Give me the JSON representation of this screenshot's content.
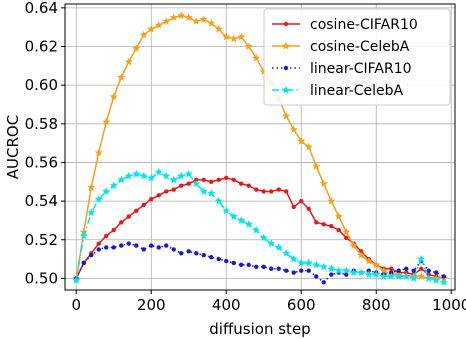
{
  "chart_data": {
    "type": "line",
    "xlabel": "diffusion step",
    "ylabel": "AUCROC",
    "xlim": [
      -30,
      1010
    ],
    "ylim": [
      0.494,
      0.642
    ],
    "xticks": [
      0,
      200,
      400,
      600,
      800,
      1000
    ],
    "xtick_labels": [
      "0",
      "200",
      "400",
      "600",
      "800",
      "1000"
    ],
    "yticks": [
      0.5,
      0.52,
      0.54,
      0.56,
      0.58,
      0.6,
      0.62,
      0.64
    ],
    "ytick_labels": [
      "0.50",
      "0.52",
      "0.54",
      "0.56",
      "0.58",
      "0.60",
      "0.62",
      "0.64"
    ],
    "grid": true,
    "legend_position": "top-right",
    "series": [
      {
        "name": "cosine-CIFAR10",
        "color": "#e41a1c",
        "linestyle": "solid",
        "marker": "dot",
        "points": [
          [
            0,
            0.5
          ],
          [
            20,
            0.508
          ],
          [
            40,
            0.513
          ],
          [
            60,
            0.518
          ],
          [
            80,
            0.522
          ],
          [
            100,
            0.525
          ],
          [
            120,
            0.529
          ],
          [
            140,
            0.532
          ],
          [
            160,
            0.535
          ],
          [
            180,
            0.538
          ],
          [
            200,
            0.541
          ],
          [
            220,
            0.543
          ],
          [
            240,
            0.545
          ],
          [
            260,
            0.546
          ],
          [
            280,
            0.548
          ],
          [
            300,
            0.549
          ],
          [
            320,
            0.551
          ],
          [
            340,
            0.551
          ],
          [
            360,
            0.55
          ],
          [
            380,
            0.551
          ],
          [
            400,
            0.552
          ],
          [
            420,
            0.551
          ],
          [
            440,
            0.549
          ],
          [
            460,
            0.548
          ],
          [
            480,
            0.546
          ],
          [
            500,
            0.545
          ],
          [
            520,
            0.545
          ],
          [
            540,
            0.546
          ],
          [
            560,
            0.545
          ],
          [
            580,
            0.537
          ],
          [
            600,
            0.54
          ],
          [
            620,
            0.536
          ],
          [
            640,
            0.529
          ],
          [
            660,
            0.528
          ],
          [
            680,
            0.527
          ],
          [
            700,
            0.525
          ],
          [
            720,
            0.521
          ],
          [
            740,
            0.518
          ],
          [
            760,
            0.514
          ],
          [
            780,
            0.51
          ],
          [
            800,
            0.507
          ],
          [
            820,
            0.505
          ],
          [
            840,
            0.505
          ],
          [
            860,
            0.503
          ],
          [
            880,
            0.503
          ],
          [
            900,
            0.502
          ],
          [
            920,
            0.505
          ],
          [
            940,
            0.502
          ],
          [
            960,
            0.501
          ],
          [
            980,
            0.5
          ]
        ]
      },
      {
        "name": "cosine-CelebA",
        "color": "#f4a21d",
        "linestyle": "solid",
        "marker": "star",
        "points": [
          [
            0,
            0.5
          ],
          [
            20,
            0.524
          ],
          [
            40,
            0.547
          ],
          [
            60,
            0.565
          ],
          [
            80,
            0.581
          ],
          [
            100,
            0.594
          ],
          [
            120,
            0.604
          ],
          [
            140,
            0.612
          ],
          [
            160,
            0.619
          ],
          [
            180,
            0.626
          ],
          [
            200,
            0.629
          ],
          [
            220,
            0.631
          ],
          [
            240,
            0.633
          ],
          [
            260,
            0.635
          ],
          [
            280,
            0.636
          ],
          [
            300,
            0.635
          ],
          [
            320,
            0.633
          ],
          [
            340,
            0.634
          ],
          [
            360,
            0.632
          ],
          [
            380,
            0.629
          ],
          [
            400,
            0.625
          ],
          [
            420,
            0.624
          ],
          [
            440,
            0.625
          ],
          [
            460,
            0.62
          ],
          [
            480,
            0.614
          ],
          [
            500,
            0.607
          ],
          [
            520,
            0.601
          ],
          [
            540,
            0.593
          ],
          [
            560,
            0.584
          ],
          [
            580,
            0.577
          ],
          [
            600,
            0.571
          ],
          [
            620,
            0.568
          ],
          [
            640,
            0.558
          ],
          [
            660,
            0.549
          ],
          [
            680,
            0.54
          ],
          [
            700,
            0.532
          ],
          [
            720,
            0.524
          ],
          [
            740,
            0.517
          ],
          [
            760,
            0.512
          ],
          [
            780,
            0.509
          ],
          [
            800,
            0.507
          ],
          [
            820,
            0.504
          ],
          [
            840,
            0.502
          ],
          [
            860,
            0.502
          ],
          [
            880,
            0.501
          ],
          [
            900,
            0.501
          ],
          [
            920,
            0.501
          ],
          [
            940,
            0.5
          ],
          [
            960,
            0.5
          ],
          [
            980,
            0.5
          ]
        ]
      },
      {
        "name": "linear-CIFAR10",
        "color": "#1a1acd",
        "linestyle": "dotted",
        "marker": "dot",
        "points": [
          [
            0,
            0.5
          ],
          [
            20,
            0.508
          ],
          [
            40,
            0.512
          ],
          [
            60,
            0.515
          ],
          [
            80,
            0.516
          ],
          [
            100,
            0.516
          ],
          [
            120,
            0.517
          ],
          [
            140,
            0.518
          ],
          [
            160,
            0.517
          ],
          [
            180,
            0.515
          ],
          [
            200,
            0.517
          ],
          [
            220,
            0.516
          ],
          [
            240,
            0.517
          ],
          [
            260,
            0.515
          ],
          [
            280,
            0.513
          ],
          [
            300,
            0.514
          ],
          [
            320,
            0.513
          ],
          [
            340,
            0.512
          ],
          [
            360,
            0.511
          ],
          [
            380,
            0.51
          ],
          [
            400,
            0.509
          ],
          [
            420,
            0.508
          ],
          [
            440,
            0.507
          ],
          [
            460,
            0.507
          ],
          [
            480,
            0.506
          ],
          [
            500,
            0.506
          ],
          [
            520,
            0.505
          ],
          [
            540,
            0.505
          ],
          [
            560,
            0.504
          ],
          [
            580,
            0.503
          ],
          [
            600,
            0.504
          ],
          [
            620,
            0.504
          ],
          [
            640,
            0.501
          ],
          [
            660,
            0.498
          ],
          [
            680,
            0.502
          ],
          [
            700,
            0.503
          ],
          [
            720,
            0.502
          ],
          [
            740,
            0.504
          ],
          [
            760,
            0.503
          ],
          [
            780,
            0.504
          ],
          [
            800,
            0.503
          ],
          [
            820,
            0.502
          ],
          [
            840,
            0.503
          ],
          [
            860,
            0.504
          ],
          [
            880,
            0.505
          ],
          [
            900,
            0.504
          ],
          [
            920,
            0.509
          ],
          [
            940,
            0.504
          ],
          [
            960,
            0.503
          ],
          [
            980,
            0.501
          ]
        ]
      },
      {
        "name": "linear-CelebA",
        "color": "#00e5ee",
        "linestyle": "dashdot",
        "marker": "star",
        "points": [
          [
            0,
            0.499
          ],
          [
            20,
            0.522
          ],
          [
            40,
            0.534
          ],
          [
            60,
            0.541
          ],
          [
            80,
            0.545
          ],
          [
            100,
            0.548
          ],
          [
            120,
            0.551
          ],
          [
            140,
            0.553
          ],
          [
            160,
            0.554
          ],
          [
            180,
            0.553
          ],
          [
            200,
            0.552
          ],
          [
            220,
            0.555
          ],
          [
            240,
            0.553
          ],
          [
            260,
            0.551
          ],
          [
            280,
            0.553
          ],
          [
            300,
            0.554
          ],
          [
            320,
            0.549
          ],
          [
            340,
            0.545
          ],
          [
            360,
            0.544
          ],
          [
            380,
            0.54
          ],
          [
            400,
            0.535
          ],
          [
            420,
            0.532
          ],
          [
            440,
            0.53
          ],
          [
            460,
            0.528
          ],
          [
            480,
            0.525
          ],
          [
            500,
            0.521
          ],
          [
            520,
            0.518
          ],
          [
            540,
            0.516
          ],
          [
            560,
            0.513
          ],
          [
            580,
            0.51
          ],
          [
            600,
            0.508
          ],
          [
            620,
            0.508
          ],
          [
            640,
            0.507
          ],
          [
            660,
            0.506
          ],
          [
            680,
            0.505
          ],
          [
            700,
            0.504
          ],
          [
            720,
            0.504
          ],
          [
            740,
            0.503
          ],
          [
            760,
            0.503
          ],
          [
            780,
            0.502
          ],
          [
            800,
            0.502
          ],
          [
            820,
            0.501
          ],
          [
            840,
            0.501
          ],
          [
            860,
            0.501
          ],
          [
            880,
            0.501
          ],
          [
            900,
            0.5
          ],
          [
            920,
            0.51
          ],
          [
            940,
            0.5
          ],
          [
            960,
            0.499
          ],
          [
            980,
            0.498
          ]
        ]
      }
    ]
  }
}
